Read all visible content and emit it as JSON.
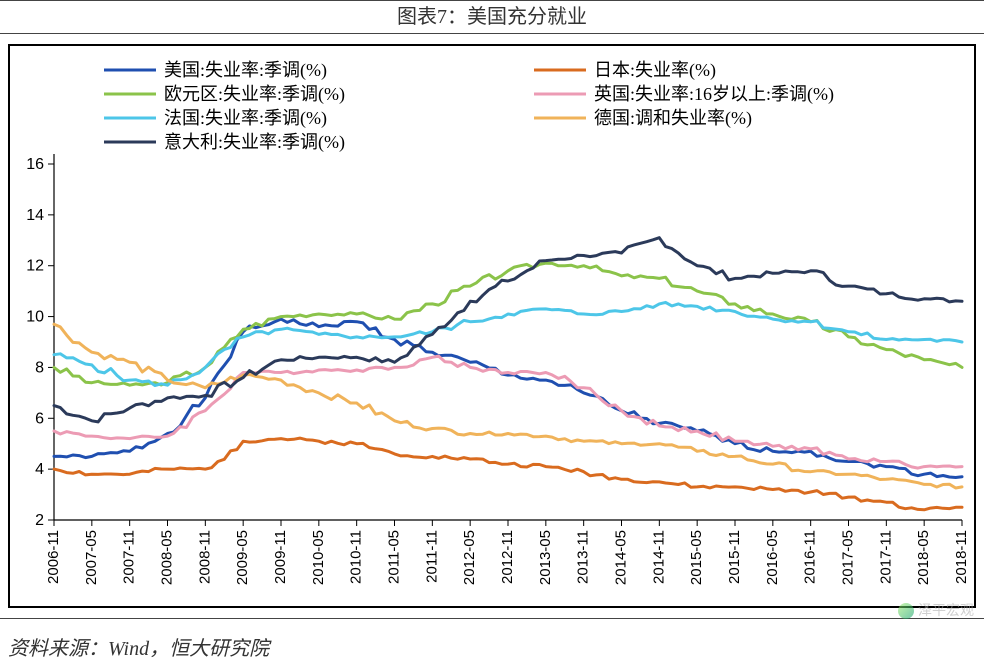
{
  "title": "图表7：美国充分就业",
  "source": "资料来源：Wind，恒大研究院",
  "watermark": "泽平宏观",
  "chart": {
    "type": "line",
    "background_color": "#ffffff",
    "border_color": "#000000",
    "ylim": [
      2,
      16
    ],
    "ytick_step": 2,
    "yticks": [
      2,
      4,
      6,
      8,
      10,
      12,
      14,
      16
    ],
    "xticks": [
      "2006-11",
      "2007-05",
      "2007-11",
      "2008-05",
      "2008-11",
      "2009-05",
      "2009-11",
      "2010-05",
      "2010-11",
      "2011-05",
      "2011-11",
      "2012-05",
      "2012-11",
      "2013-05",
      "2013-11",
      "2014-05",
      "2014-11",
      "2015-05",
      "2015-11",
      "2016-05",
      "2016-11",
      "2017-05",
      "2017-11",
      "2018-05",
      "2018-11"
    ],
    "xtick_rotation": -90,
    "legend": {
      "position": "top-inside",
      "columns": 2,
      "line_length": 52,
      "fontsize": 18
    },
    "line_width": 3,
    "axis_fontsize": 16,
    "series": [
      {
        "name": "美国:失业率:季调(%)",
        "color": "#1f4fb0",
        "data": [
          4.5,
          4.5,
          4.7,
          5.4,
          6.8,
          9.4,
          9.9,
          9.6,
          9.8,
          9.1,
          8.6,
          8.2,
          7.7,
          7.5,
          7.0,
          6.3,
          5.8,
          5.5,
          5.0,
          4.7,
          4.7,
          4.3,
          4.1,
          3.8,
          3.7
        ]
      },
      {
        "name": "日本:失业率(%)",
        "color": "#d96b1f",
        "data": [
          4.0,
          3.8,
          3.8,
          4.0,
          4.0,
          5.1,
          5.2,
          5.1,
          5.0,
          4.6,
          4.5,
          4.4,
          4.2,
          4.1,
          3.9,
          3.6,
          3.5,
          3.3,
          3.3,
          3.2,
          3.1,
          2.9,
          2.7,
          2.4,
          2.5
        ]
      },
      {
        "name": "欧元区:失业率:季调(%)",
        "color": "#8bc34a",
        "data": [
          8.0,
          7.4,
          7.3,
          7.4,
          8.0,
          9.5,
          10.0,
          10.1,
          10.1,
          9.9,
          10.5,
          11.2,
          11.8,
          12.1,
          12.0,
          11.6,
          11.5,
          11.0,
          10.5,
          10.1,
          9.8,
          9.2,
          8.7,
          8.3,
          8.0
        ]
      },
      {
        "name": "英国:失业率:16岁以上:季调(%)",
        "color": "#ec9bb4",
        "data": [
          5.5,
          5.3,
          5.2,
          5.3,
          6.3,
          7.8,
          7.8,
          7.9,
          7.9,
          8.0,
          8.4,
          8.0,
          7.8,
          7.8,
          7.2,
          6.3,
          5.7,
          5.5,
          5.1,
          4.9,
          4.8,
          4.4,
          4.3,
          4.1,
          4.1
        ]
      },
      {
        "name": "法国:失业率:季调(%)",
        "color": "#4dc6e8",
        "data": [
          8.5,
          8.1,
          7.5,
          7.3,
          8.0,
          9.2,
          9.5,
          9.3,
          9.2,
          9.2,
          9.4,
          9.8,
          10.1,
          10.3,
          10.1,
          10.2,
          10.5,
          10.4,
          10.2,
          9.9,
          9.8,
          9.4,
          9.1,
          9.1,
          9.0
        ]
      },
      {
        "name": "德国:调和失业率(%)",
        "color": "#f0b35a",
        "data": [
          9.7,
          8.6,
          8.2,
          7.5,
          7.2,
          7.7,
          7.5,
          7.0,
          6.6,
          5.9,
          5.6,
          5.4,
          5.4,
          5.3,
          5.1,
          5.0,
          5.0,
          4.7,
          4.5,
          4.2,
          3.9,
          3.8,
          3.6,
          3.4,
          3.3
        ]
      },
      {
        "name": "意大利:失业率:季调(%)",
        "color": "#2b3a5a",
        "data": [
          6.5,
          5.9,
          6.4,
          6.8,
          6.9,
          7.6,
          8.3,
          8.4,
          8.4,
          8.2,
          9.3,
          10.6,
          11.4,
          12.2,
          12.4,
          12.5,
          13.1,
          12.0,
          11.5,
          11.7,
          11.8,
          11.2,
          10.9,
          10.7,
          10.6
        ]
      }
    ]
  }
}
